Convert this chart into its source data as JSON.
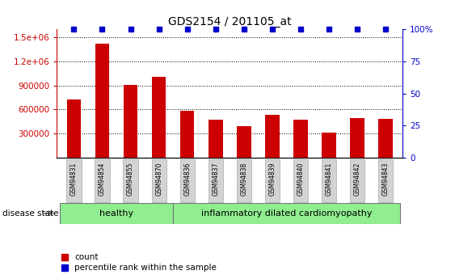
{
  "title": "GDS2154 / 201105_at",
  "samples": [
    "GSM94831",
    "GSM94854",
    "GSM94855",
    "GSM94870",
    "GSM94836",
    "GSM94837",
    "GSM94838",
    "GSM94839",
    "GSM94840",
    "GSM94841",
    "GSM94842",
    "GSM94843"
  ],
  "counts": [
    730000,
    1420000,
    910000,
    1010000,
    580000,
    470000,
    390000,
    530000,
    470000,
    310000,
    490000,
    480000
  ],
  "percentile_ranks": [
    100,
    100,
    100,
    100,
    100,
    100,
    100,
    100,
    100,
    100,
    100,
    100
  ],
  "healthy_count": 4,
  "bar_color": "#cc0000",
  "dot_color": "#0000cc",
  "ylim_left": [
    0,
    1600000
  ],
  "ylim_right": [
    0,
    100
  ],
  "yticks_left": [
    300000,
    600000,
    900000,
    1200000,
    1500000
  ],
  "ytick_labels_left": [
    "300000",
    "600000",
    "900000",
    "1.2e+06",
    "1.5e+06"
  ],
  "yticks_right": [
    0,
    25,
    50,
    75,
    100
  ],
  "ytick_labels_right": [
    "0",
    "25",
    "50",
    "75",
    "100%"
  ],
  "label_count": "count",
  "label_percentile": "percentile rank within the sample",
  "disease_state_label": "disease state",
  "healthy_label": "healthy",
  "idc_label": "inflammatory dilated cardiomyopathy",
  "healthy_color": "#90EE90",
  "idc_color": "#90EE90",
  "tick_box_color": "#d3d3d3",
  "tick_box_edge_color": "#aaaaaa"
}
